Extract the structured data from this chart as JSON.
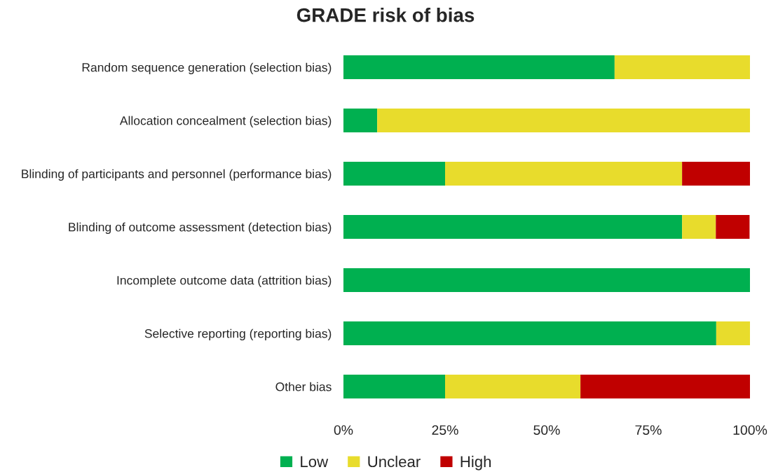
{
  "chart_data": {
    "type": "bar",
    "orientation": "horizontal",
    "stacked": true,
    "title": "GRADE risk of bias",
    "categories": [
      "Random sequence generation (selection bias)",
      "Allocation concealment (selection bias)",
      "Blinding of participants and personnel (performance bias)",
      "Blinding of outcome assessment (detection bias)",
      "Incomplete outcome data (attrition bias)",
      "Selective reporting (reporting bias)",
      "Other bias"
    ],
    "series": [
      {
        "name": "Low",
        "color": "#00b050",
        "values": [
          66.7,
          8.3,
          25,
          83.3,
          100,
          91.7,
          25
        ]
      },
      {
        "name": "Unclear",
        "color": "#e8dc2c",
        "values": [
          33.3,
          91.7,
          58.3,
          8.3,
          0,
          8.3,
          33.3
        ]
      },
      {
        "name": "High",
        "color": "#c00000",
        "values": [
          0,
          0,
          16.7,
          8.3,
          0,
          0,
          41.7
        ]
      }
    ],
    "xlim": [
      0,
      100
    ],
    "xticks": [
      {
        "value": 0,
        "label": "0%"
      },
      {
        "value": 25,
        "label": "25%"
      },
      {
        "value": 50,
        "label": "50%"
      },
      {
        "value": 75,
        "label": "75%"
      },
      {
        "value": 100,
        "label": "100%"
      }
    ],
    "grid": false,
    "legend": "bottom"
  }
}
